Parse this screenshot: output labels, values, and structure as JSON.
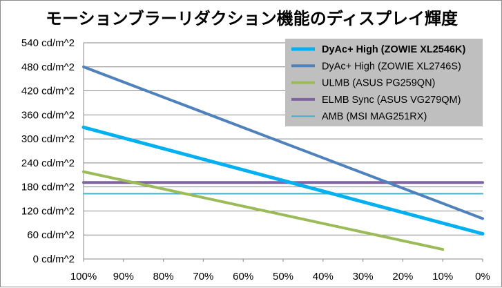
{
  "chart_data": {
    "type": "line",
    "title": "モーションブラーリダクション機能のディスプレイ輝度",
    "xlabel": "",
    "ylabel": "",
    "x": [
      "100%",
      "90%",
      "80%",
      "70%",
      "60%",
      "50%",
      "40%",
      "30%",
      "20%",
      "10%",
      "0%"
    ],
    "x_values": [
      100,
      90,
      80,
      70,
      60,
      50,
      40,
      30,
      20,
      10,
      0
    ],
    "xlim": [
      100,
      0
    ],
    "y_ticks": [
      "0 cd/m^2",
      "60 cd/m^2",
      "120 cd/m^2",
      "180 cd/m^2",
      "240 cd/m^2",
      "300 cd/m^2",
      "360 cd/m^2",
      "420 cd/m^2",
      "480 cd/m^2",
      "540 cd/m^2"
    ],
    "ylim": [
      0,
      540
    ],
    "grid": true,
    "legend_position": "top-right",
    "series": [
      {
        "name": "DyAc+ High (ZOWIE XL2546K)",
        "color": "#00B0F0",
        "bold": true,
        "width": 5,
        "points": [
          [
            100,
            329
          ],
          [
            0,
            63
          ]
        ]
      },
      {
        "name": "DyAc+ High (ZOWIE XL2746S)",
        "color": "#4F81BD",
        "bold": false,
        "width": 4,
        "points": [
          [
            100,
            480
          ],
          [
            0,
            101
          ]
        ]
      },
      {
        "name": "ULMB (ASUS PG259QN)",
        "color": "#9BBB59",
        "bold": false,
        "width": 4,
        "points": [
          [
            100,
            218
          ],
          [
            10,
            24
          ]
        ]
      },
      {
        "name": "ELMB Sync (ASUS VG279QM)",
        "color": "#8064A2",
        "bold": false,
        "width": 4,
        "points": [
          [
            100,
            191
          ],
          [
            0,
            191
          ]
        ]
      },
      {
        "name": "AMB (MSI MAG251RX)",
        "color": "#4BACC6",
        "bold": false,
        "width": 2,
        "points": [
          [
            100,
            163
          ],
          [
            0,
            163
          ]
        ]
      }
    ]
  },
  "colors": {
    "grid": "#878787",
    "legend_background": "#bfbfbf",
    "axis": "#878787"
  }
}
